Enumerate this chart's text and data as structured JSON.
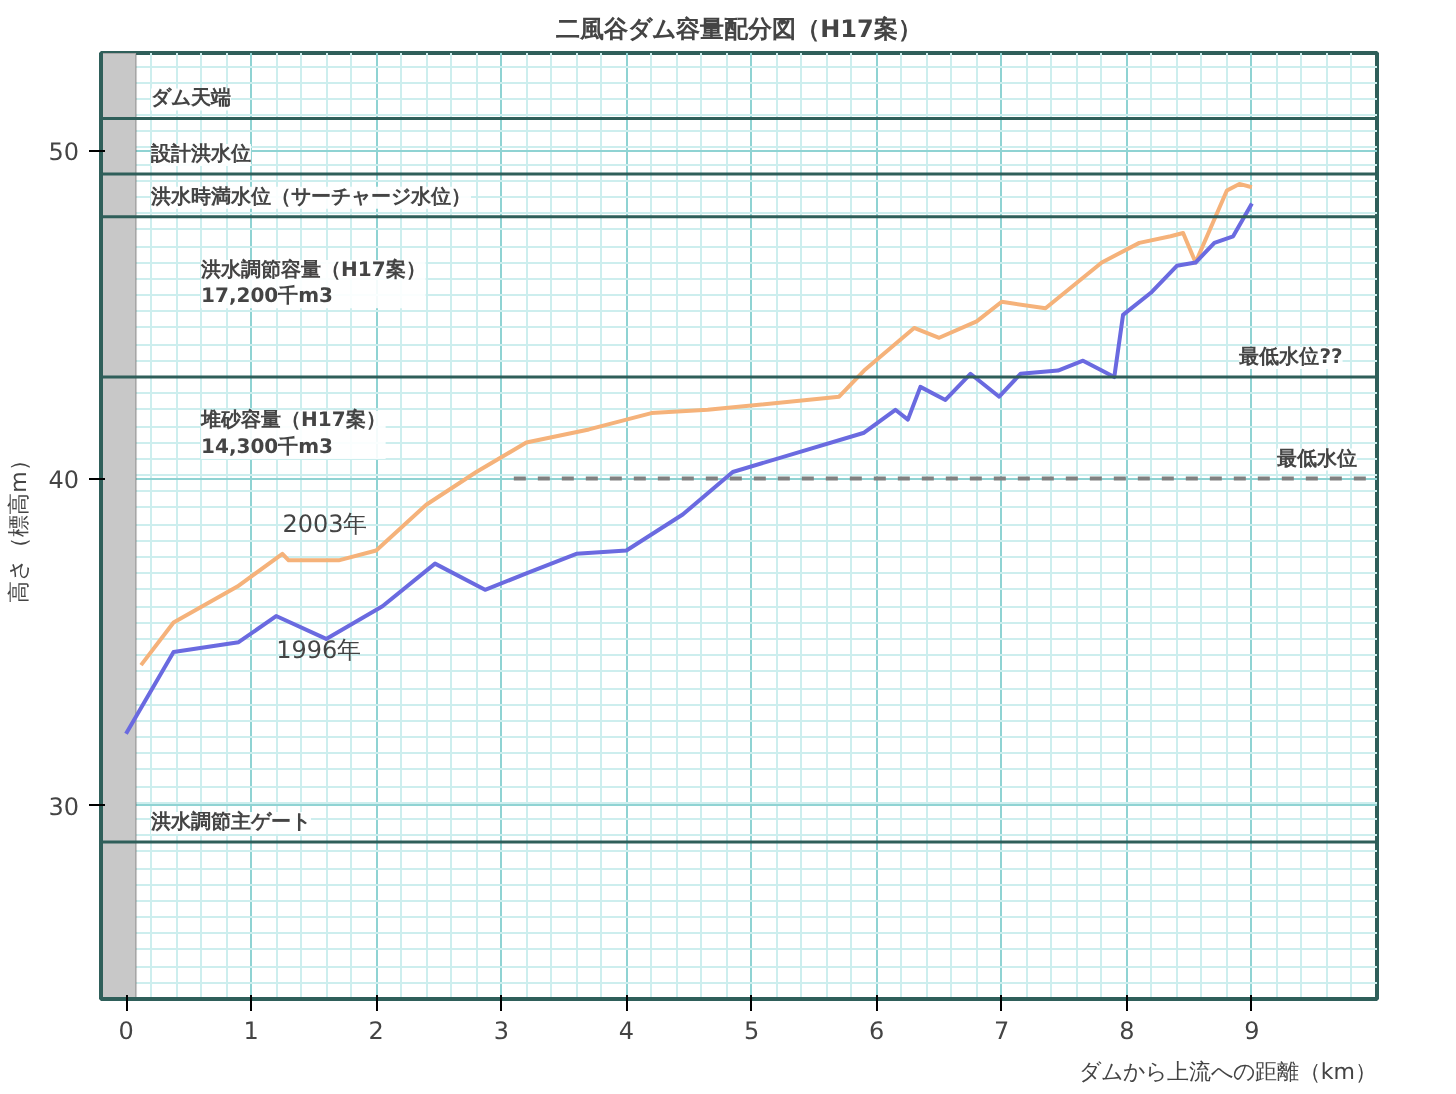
{
  "chart_data": {
    "type": "line",
    "title": "二風谷ダム容量配分図（H17案）",
    "xlabel": "ダムから上流への距離（km）",
    "ylabel": "高さ（標高m）",
    "xlim": [
      -0.2,
      10
    ],
    "ylim": [
      24.1,
      53
    ],
    "xticks": [
      0,
      1,
      2,
      3,
      4,
      5,
      6,
      7,
      8,
      9
    ],
    "yticks": [
      30,
      40,
      50
    ],
    "grid": true,
    "line_style": "solid",
    "marker": "none",
    "series": [
      {
        "name": "2003年",
        "color": "#f5b27a",
        "x": [
          0.12,
          0.38,
          0.89,
          1.25,
          1.3,
          1.7,
          2.0,
          2.4,
          2.8,
          3.2,
          3.7,
          4.2,
          4.65,
          5.7,
          5.9,
          6.3,
          6.5,
          6.8,
          7.0,
          7.35,
          7.8,
          8.1,
          8.35,
          8.45,
          8.55,
          8.8,
          8.9,
          9.0
        ],
        "values": [
          34.3,
          35.6,
          36.7,
          37.7,
          37.5,
          37.5,
          37.8,
          39.2,
          40.2,
          41.1,
          41.5,
          42.0,
          42.1,
          42.5,
          43.3,
          44.6,
          44.3,
          44.8,
          45.4,
          45.2,
          46.6,
          47.2,
          47.4,
          47.5,
          46.6,
          48.8,
          49.0,
          48.9
        ]
      },
      {
        "name": "1996年",
        "color": "#6a6ae0",
        "x": [
          0.0,
          0.38,
          0.9,
          1.2,
          1.6,
          2.05,
          2.47,
          2.87,
          3.2,
          3.6,
          4.0,
          4.45,
          4.85,
          5.9,
          6.15,
          6.25,
          6.35,
          6.55,
          6.75,
          6.98,
          7.15,
          7.45,
          7.65,
          7.9,
          7.97,
          8.2,
          8.4,
          8.55,
          8.7,
          8.85,
          9.0
        ],
        "values": [
          32.2,
          34.7,
          35.0,
          35.8,
          35.1,
          36.1,
          37.4,
          36.6,
          37.1,
          37.7,
          37.8,
          38.9,
          40.2,
          41.4,
          42.1,
          41.8,
          42.8,
          42.4,
          43.2,
          42.5,
          43.2,
          43.3,
          43.6,
          43.1,
          45.0,
          45.7,
          46.5,
          46.6,
          47.2,
          47.4,
          48.4
        ]
      },
      {
        "type": "line",
        "color": "#808080",
        "line_style": "dashed",
        "x": [
          3.1,
          10
        ],
        "values": [
          40,
          40
        ]
      }
    ],
    "ref_lines": [
      {
        "axis": "y",
        "value": 51.0,
        "label": "ダム天端",
        "color": "#2f5f5a"
      },
      {
        "axis": "y",
        "value": 49.3,
        "label": "設計洪水位",
        "color": "#2f5f5a"
      },
      {
        "axis": "y",
        "value": 48.0,
        "label": "洪水時満水位（サーチャージ水位）",
        "color": "#2f5f5a"
      },
      {
        "axis": "y",
        "value": 43.1,
        "color": "#2f5f5a"
      },
      {
        "axis": "y",
        "value": 28.9,
        "label": "洪水調節主ゲート",
        "color": "#2f5f5a"
      }
    ],
    "bands": [
      {
        "axis": "x",
        "from": -0.2,
        "to": 0.08,
        "color": "#c8c8c8"
      }
    ],
    "annotations": [
      "洪水調節容量（H17案）\n17,200千m3",
      "堆砂容量（H17案）\n14,300千m3",
      {
        "text": "最低水位??",
        "x": 8.9,
        "y": 43.1
      },
      {
        "text": "最低水位",
        "x": 9.2,
        "y": 40
      }
    ]
  }
}
